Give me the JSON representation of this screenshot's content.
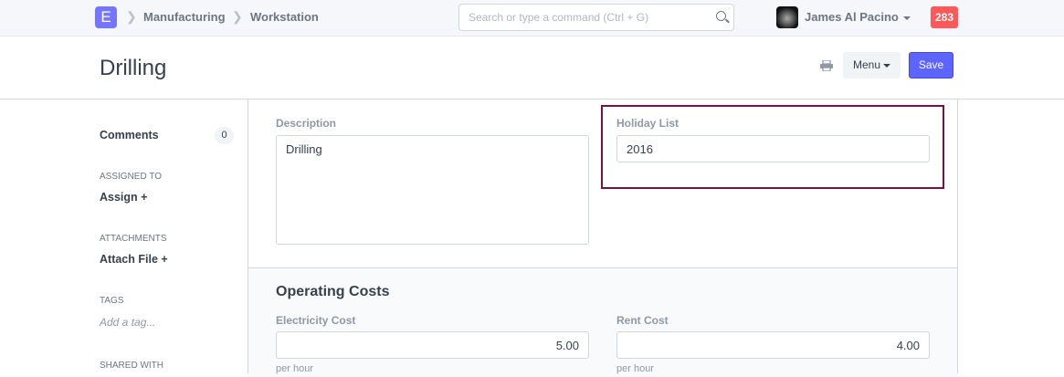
{
  "navbar": {
    "logo": "E",
    "breadcrumbs": [
      "Manufacturing",
      "Workstation"
    ],
    "search_placeholder": "Search or type a command (Ctrl + G)",
    "user": "James Al Pacino",
    "notifications": "283"
  },
  "header": {
    "title": "Drilling",
    "menu_label": "Menu",
    "save_label": "Save"
  },
  "sidebar": {
    "comments_label": "Comments",
    "comments_count": "0",
    "assigned_to": "Assigned To",
    "assign": "Assign +",
    "attachments": "Attachments",
    "attach_file": "Attach File +",
    "tags": "Tags",
    "add_tag": "Add a tag...",
    "shared_with": "Shared With"
  },
  "form": {
    "description_label": "Description",
    "description_value": "Drilling",
    "holiday_list_label": "Holiday List",
    "holiday_list_value": "2016",
    "operating_costs": {
      "heading": "Operating Costs",
      "electricity_label": "Electricity Cost",
      "electricity_value": "5.00",
      "electricity_help": "per hour",
      "rent_label": "Rent Cost",
      "rent_value": "4.00",
      "rent_help": "per hour"
    }
  },
  "colors": {
    "primary": "#5e64ff",
    "highlight": "#7b1044",
    "badge": "#ff5858"
  }
}
